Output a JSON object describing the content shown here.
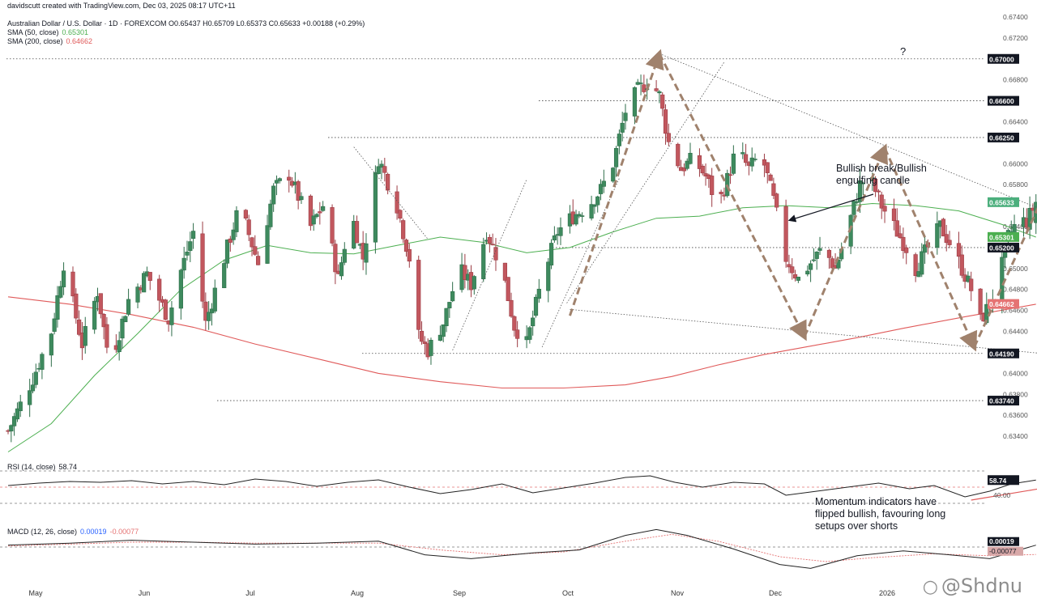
{
  "header": {
    "author_line": "davidscutt created with TradingView.com, Dec 03, 2025 08:17 UTC+11",
    "symbol_line": "Australian Dollar / U.S. Dollar · 1D · FOREXCOM  O0.65437  H0.65709  L0.65373  C0.65633  +0.00188 (+0.29%)",
    "sma50_label": "SMA (50, close)",
    "sma50_value": "0.65301",
    "sma200_label": "SMA (200, close)",
    "sma200_value": "0.64662",
    "rsi_label": "RSI (14, close)",
    "rsi_value": "58.74",
    "macd_label": "MACD (12, 26, close)",
    "macd_value": "0.00019",
    "macd_signal_value": "-0.00077"
  },
  "annotations": {
    "bullish_break": [
      "Bullish break/Bullish",
      "engulfing candle"
    ],
    "question_mark": "?",
    "momentum": [
      "Momentum indicators have",
      "flipped bullish, favouring long",
      "setups over shorts"
    ]
  },
  "watermark": {
    "icon": "weibo-icon",
    "text": "@Shdnu"
  },
  "colors": {
    "up": "#26a69a",
    "up_body": "#3e8a5e",
    "down": "#c2575e",
    "sma50": "#4caf50",
    "sma200": "#e05a5a",
    "projection": "#a0826d",
    "trendline": "#555555",
    "price_tag_bg": "#131722",
    "last_price_bg": "#4caf7d",
    "sma200_tag_bg": "#e57373"
  },
  "chart_data": {
    "type": "candlestick",
    "symbol": "AUDUSD",
    "timeframe": "1D",
    "x_month_labels": [
      "May",
      "Jun",
      "Jul",
      "Aug",
      "Sep",
      "Oct",
      "Nov",
      "Dec",
      "2026"
    ],
    "y_range": [
      0.632,
      0.675
    ],
    "y_ticks": [
      "0.67400",
      "0.67200",
      "0.66800",
      "0.66400",
      "0.66000",
      "0.65800",
      "0.65400",
      "0.65000",
      "0.64800",
      "0.64600",
      "0.64400",
      "0.64000",
      "0.63800",
      "0.63600",
      "0.63400"
    ],
    "level_tags": [
      {
        "value": 0.67,
        "label": "0.67000",
        "kind": "level"
      },
      {
        "value": 0.666,
        "label": "0.66600",
        "kind": "level"
      },
      {
        "value": 0.6625,
        "label": "0.66250",
        "kind": "level"
      },
      {
        "value": 0.65633,
        "label": "0.65633",
        "kind": "last"
      },
      {
        "value": 0.65301,
        "label": "0.65301",
        "kind": "sma50"
      },
      {
        "value": 0.652,
        "label": "0.65200",
        "kind": "level"
      },
      {
        "value": 0.64662,
        "label": "0.64662",
        "kind": "sma200"
      },
      {
        "value": 0.6419,
        "label": "0.64190",
        "kind": "level"
      },
      {
        "value": 0.6374,
        "label": "0.63740",
        "kind": "level"
      }
    ],
    "close_path": [
      [
        0,
        0.6345
      ],
      [
        8,
        0.6395
      ],
      [
        14,
        0.644
      ],
      [
        18,
        0.6505
      ],
      [
        24,
        0.6428
      ],
      [
        29,
        0.6478
      ],
      [
        33,
        0.6408
      ],
      [
        39,
        0.647
      ],
      [
        45,
        0.6495
      ],
      [
        52,
        0.6452
      ],
      [
        56,
        0.6498
      ],
      [
        60,
        0.6535
      ],
      [
        64,
        0.6448
      ],
      [
        71,
        0.652
      ],
      [
        75,
        0.656
      ],
      [
        81,
        0.6505
      ],
      [
        86,
        0.6575
      ],
      [
        91,
        0.659
      ],
      [
        98,
        0.654
      ],
      [
        102,
        0.656
      ],
      [
        107,
        0.649
      ],
      [
        111,
        0.6555
      ],
      [
        115,
        0.651
      ],
      [
        120,
        0.6605
      ],
      [
        126,
        0.656
      ],
      [
        130,
        0.651
      ],
      [
        132,
        0.644
      ],
      [
        136,
        0.6422
      ],
      [
        141,
        0.6448
      ],
      [
        146,
        0.65
      ],
      [
        150,
        0.6485
      ],
      [
        155,
        0.6535
      ],
      [
        160,
        0.65
      ],
      [
        164,
        0.6445
      ],
      [
        168,
        0.6428
      ],
      [
        173,
        0.649
      ],
      [
        178,
        0.6535
      ],
      [
        183,
        0.655
      ],
      [
        188,
        0.656
      ],
      [
        192,
        0.6575
      ],
      [
        196,
        0.66
      ],
      [
        200,
        0.665
      ],
      [
        204,
        0.667
      ],
      [
        208,
        0.668
      ],
      [
        211,
        0.6665
      ],
      [
        214,
        0.662
      ],
      [
        218,
        0.6595
      ],
      [
        222,
        0.6605
      ],
      [
        226,
        0.6588
      ],
      [
        230,
        0.656
      ],
      [
        233,
        0.6585
      ],
      [
        236,
        0.6615
      ],
      [
        240,
        0.6595
      ],
      [
        244,
        0.661
      ],
      [
        248,
        0.6565
      ],
      [
        252,
        0.651
      ],
      [
        256,
        0.649
      ],
      [
        260,
        0.6505
      ],
      [
        264,
        0.652
      ],
      [
        268,
        0.65
      ],
      [
        272,
        0.6538
      ],
      [
        276,
        0.658
      ],
      [
        279,
        0.6588
      ],
      [
        283,
        0.656
      ],
      [
        287,
        0.654
      ],
      [
        291,
        0.652
      ],
      [
        294,
        0.65
      ],
      [
        298,
        0.652
      ],
      [
        302,
        0.654
      ],
      [
        306,
        0.652
      ],
      [
        309,
        0.65
      ],
      [
        312,
        0.648
      ],
      [
        315,
        0.645
      ],
      [
        318,
        0.6466
      ],
      [
        321,
        0.649
      ],
      [
        324,
        0.653
      ],
      [
        327,
        0.6545
      ],
      [
        330,
        0.6545
      ],
      [
        333,
        0.6563
      ]
    ],
    "sma50_points": [
      [
        0,
        0.6325
      ],
      [
        14,
        0.6352
      ],
      [
        28,
        0.6398
      ],
      [
        42,
        0.6438
      ],
      [
        56,
        0.648
      ],
      [
        70,
        0.6508
      ],
      [
        84,
        0.6522
      ],
      [
        98,
        0.6515
      ],
      [
        112,
        0.6514
      ],
      [
        126,
        0.6522
      ],
      [
        140,
        0.653
      ],
      [
        154,
        0.6525
      ],
      [
        168,
        0.6515
      ],
      [
        182,
        0.652
      ],
      [
        196,
        0.6535
      ],
      [
        210,
        0.6548
      ],
      [
        224,
        0.655
      ],
      [
        238,
        0.6558
      ],
      [
        252,
        0.656
      ],
      [
        266,
        0.6558
      ],
      [
        280,
        0.6562
      ],
      [
        294,
        0.656
      ],
      [
        308,
        0.6555
      ],
      [
        322,
        0.6542
      ],
      [
        333,
        0.653
      ]
    ],
    "sma200_points": [
      [
        0,
        0.6473
      ],
      [
        20,
        0.6466
      ],
      [
        40,
        0.6456
      ],
      [
        60,
        0.6444
      ],
      [
        80,
        0.6428
      ],
      [
        100,
        0.6414
      ],
      [
        120,
        0.64
      ],
      [
        140,
        0.6392
      ],
      [
        160,
        0.6386
      ],
      [
        180,
        0.6386
      ],
      [
        200,
        0.6389
      ],
      [
        215,
        0.6397
      ],
      [
        230,
        0.6408
      ],
      [
        245,
        0.6418
      ],
      [
        260,
        0.6426
      ],
      [
        275,
        0.6434
      ],
      [
        290,
        0.6443
      ],
      [
        310,
        0.6454
      ],
      [
        333,
        0.6466
      ]
    ],
    "projection_zigzag": [
      [
        182,
        0.6455
      ],
      [
        211,
        0.6705
      ],
      [
        258,
        0.6435
      ],
      [
        284,
        0.6615
      ],
      [
        313,
        0.6425
      ],
      [
        355,
        0.6695
      ]
    ],
    "trendlines": [
      [
        [
          211,
          0.6705
        ],
        [
          375,
          0.6508
        ]
      ],
      [
        [
          182,
          0.6461
        ],
        [
          375,
          0.6408
        ]
      ],
      [
        [
          181,
          0.6467
        ],
        [
          232,
          0.6697
        ]
      ],
      [
        [
          144,
          0.6422
        ],
        [
          168,
          0.6585
        ]
      ],
      [
        [
          173,
          0.6425
        ],
        [
          198,
          0.6586
        ]
      ],
      [
        [
          112,
          0.6616
        ],
        [
          136,
          0.6528
        ]
      ]
    ],
    "rsi": {
      "range": [
        20,
        80
      ],
      "points": [
        [
          0,
          52
        ],
        [
          10,
          55
        ],
        [
          20,
          57
        ],
        [
          30,
          56
        ],
        [
          40,
          58
        ],
        [
          50,
          54
        ],
        [
          60,
          57
        ],
        [
          70,
          53
        ],
        [
          80,
          60
        ],
        [
          90,
          57
        ],
        [
          100,
          51
        ],
        [
          110,
          56
        ],
        [
          120,
          59
        ],
        [
          130,
          50
        ],
        [
          140,
          42
        ],
        [
          150,
          47
        ],
        [
          160,
          54
        ],
        [
          170,
          43
        ],
        [
          180,
          49
        ],
        [
          190,
          55
        ],
        [
          200,
          62
        ],
        [
          208,
          64
        ],
        [
          216,
          56
        ],
        [
          225,
          50
        ],
        [
          235,
          56
        ],
        [
          245,
          54
        ],
        [
          252,
          40
        ],
        [
          262,
          45
        ],
        [
          272,
          50
        ],
        [
          282,
          55
        ],
        [
          292,
          48
        ],
        [
          300,
          52
        ],
        [
          310,
          38
        ],
        [
          318,
          45
        ],
        [
          325,
          54
        ],
        [
          333,
          58.74
        ]
      ],
      "levels": [
        70,
        50,
        30
      ],
      "tick_labels": [
        "58.74",
        "40.00"
      ]
    },
    "macd": {
      "range": [
        -0.003,
        0.003
      ],
      "macd_points": [
        [
          0,
          0.0002
        ],
        [
          20,
          0.0004
        ],
        [
          40,
          0.0007
        ],
        [
          60,
          0.0005
        ],
        [
          80,
          0.0003
        ],
        [
          100,
          0.0004
        ],
        [
          120,
          0.0006
        ],
        [
          135,
          -0.0008
        ],
        [
          150,
          -0.0012
        ],
        [
          170,
          -0.0006
        ],
        [
          185,
          -0.0003
        ],
        [
          200,
          0.0012
        ],
        [
          210,
          0.0018
        ],
        [
          220,
          0.0012
        ],
        [
          235,
          -0.0002
        ],
        [
          250,
          -0.0018
        ],
        [
          260,
          -0.0022
        ],
        [
          275,
          -0.0009
        ],
        [
          290,
          -0.0004
        ],
        [
          305,
          -0.0008
        ],
        [
          318,
          -0.0012
        ],
        [
          333,
          0.00019
        ]
      ],
      "signal_points": [
        [
          0,
          0.0001
        ],
        [
          20,
          0.0003
        ],
        [
          40,
          0.0005
        ],
        [
          60,
          0.0005
        ],
        [
          80,
          0.0004
        ],
        [
          100,
          0.0004
        ],
        [
          120,
          0.0004
        ],
        [
          140,
          -0.0003
        ],
        [
          160,
          -0.0008
        ],
        [
          180,
          -0.0005
        ],
        [
          200,
          0.0006
        ],
        [
          215,
          0.0013
        ],
        [
          230,
          0.0006
        ],
        [
          250,
          -0.001
        ],
        [
          265,
          -0.0015
        ],
        [
          280,
          -0.0011
        ],
        [
          300,
          -0.0007
        ],
        [
          318,
          -0.0009
        ],
        [
          333,
          -0.00077
        ]
      ],
      "tick_labels": [
        "0.00019",
        "-0.00077"
      ]
    }
  }
}
